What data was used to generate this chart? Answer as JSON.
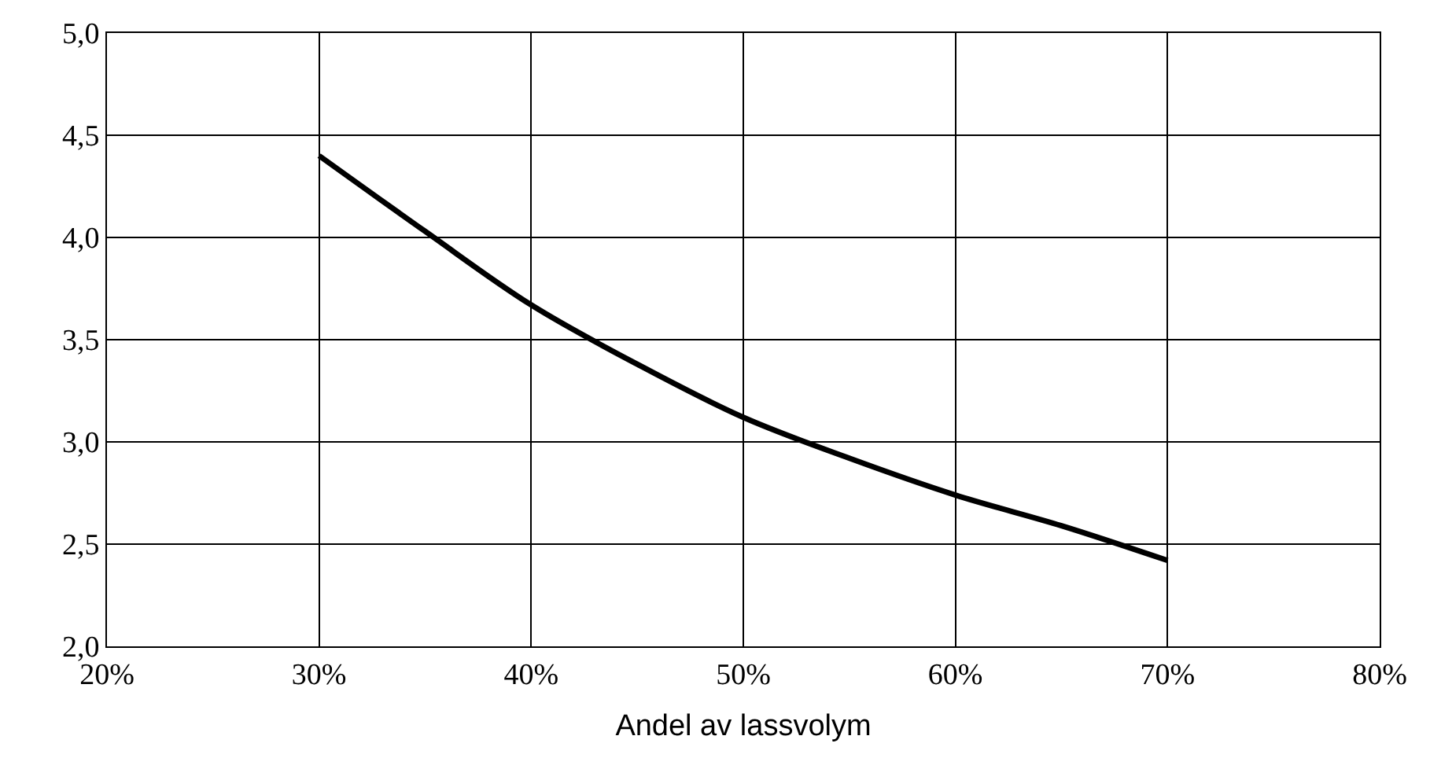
{
  "chart_data": {
    "type": "line",
    "xlabel": "Andel av lassvolym",
    "x": [
      30,
      35,
      40,
      45,
      50,
      55,
      60,
      65,
      70
    ],
    "series": [
      {
        "color": "#000000",
        "values": [
          4.4,
          4.03,
          3.67,
          3.38,
          3.12,
          2.92,
          2.74,
          2.59,
          2.42
        ]
      }
    ],
    "xlim": [
      20,
      80
    ],
    "xticks": [
      {
        "value": 20,
        "label": "20%"
      },
      {
        "value": 30,
        "label": "30%"
      },
      {
        "value": 40,
        "label": "40%"
      },
      {
        "value": 50,
        "label": "50%"
      },
      {
        "value": 60,
        "label": "60%"
      },
      {
        "value": 70,
        "label": "70%"
      },
      {
        "value": 80,
        "label": "80%"
      }
    ],
    "ylim": [
      2.0,
      5.0
    ],
    "yticks": [
      {
        "value": 2.0,
        "label": "2,0"
      },
      {
        "value": 2.5,
        "label": "2,5"
      },
      {
        "value": 3.0,
        "label": "3,0"
      },
      {
        "value": 3.5,
        "label": "3,5"
      },
      {
        "value": 4.0,
        "label": "4,0"
      },
      {
        "value": 4.5,
        "label": "4,5"
      },
      {
        "value": 5.0,
        "label": "5,0"
      }
    ],
    "grid": true,
    "marker": "none",
    "line_style": "solid"
  }
}
